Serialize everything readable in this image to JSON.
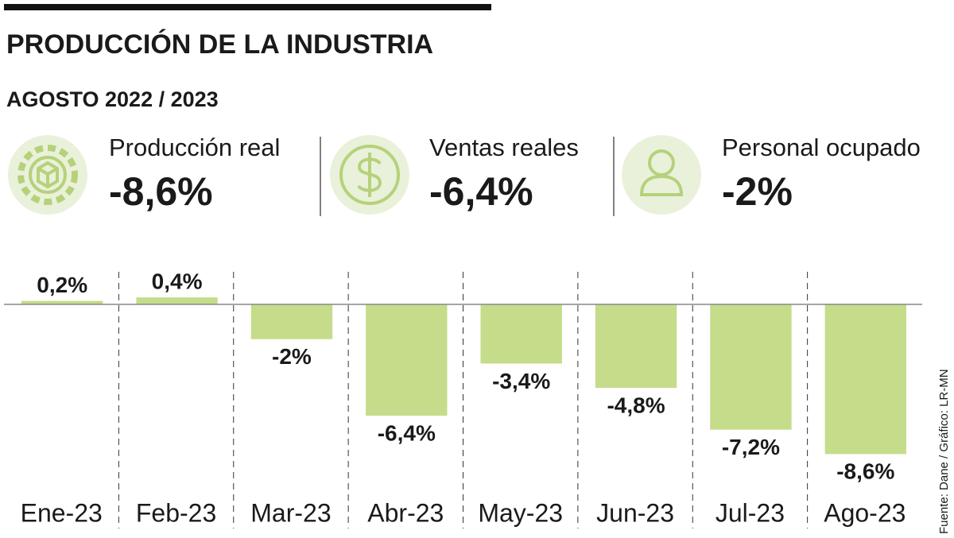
{
  "header": {
    "title": "PRODUCCIÓN DE LA INDUSTRIA",
    "subtitle": "AGOSTO 2022 / 2023"
  },
  "kpis": [
    {
      "label": "Producción real",
      "value": "-8,6%"
    },
    {
      "label": "Ventas reales",
      "value": "-6,4%"
    },
    {
      "label": "Personal ocupado",
      "value": "-2%"
    }
  ],
  "source": "Fuente: Dane / Gráfico: LR-MN",
  "chart_data": {
    "type": "bar",
    "color": "#c5dc8a",
    "categories": [
      "Ene-23",
      "Feb-23",
      "Mar-23",
      "Abr-23",
      "May-23",
      "Jun-23",
      "Jul-23",
      "Ago-23"
    ],
    "values": [
      0.2,
      0.4,
      -2,
      -6.4,
      -3.4,
      -4.8,
      -7.2,
      -8.6
    ],
    "value_labels": [
      "0,2%",
      "0,4%",
      "-2%",
      "-6,4%",
      "-3,4%",
      "-4,8%",
      "-7,2%",
      "-8,6%"
    ]
  }
}
